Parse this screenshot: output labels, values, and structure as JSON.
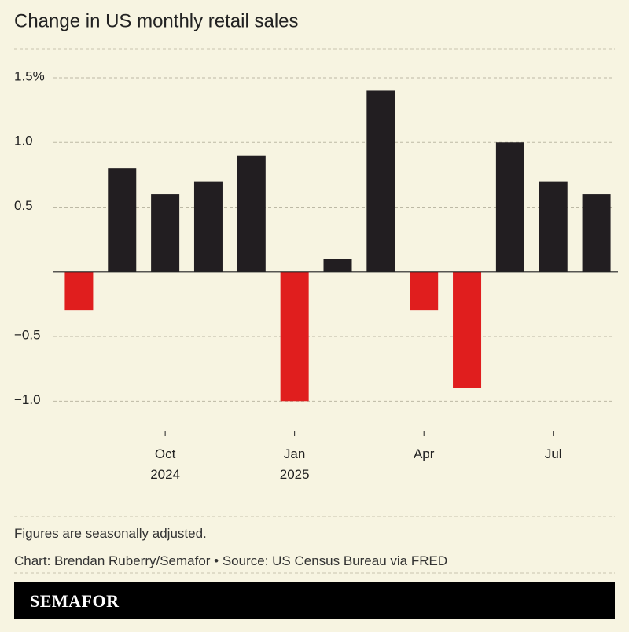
{
  "chart_data": {
    "type": "bar",
    "title": "Change in US monthly retail sales",
    "categories": [
      null,
      null,
      "Oct 2024",
      null,
      null,
      "Jan 2025",
      null,
      null,
      "Apr",
      null,
      null,
      "Jul",
      null
    ],
    "values": [
      -0.3,
      0.8,
      0.6,
      0.7,
      0.9,
      -1.0,
      0.1,
      1.4,
      -0.3,
      -0.9,
      1.0,
      0.7,
      0.6
    ],
    "positive_color": "#221e21",
    "negative_color": "#e01e1e",
    "ylim": [
      -1.15,
      1.5
    ],
    "yticks": [
      {
        "value": -1.0,
        "label": "−1.0"
      },
      {
        "value": -0.5,
        "label": "−0.5"
      },
      0.5,
      {
        "value": 1.0,
        "label": "1.0"
      },
      {
        "value": 1.5,
        "label": "1.5%"
      }
    ],
    "grid": true
  },
  "footer": {
    "note": "Figures are seasonally adjusted.",
    "credit": "Chart: Brendan Ruberry/Semafor • Source: US Census Bureau via FRED",
    "logo": "SEMAFOR"
  }
}
